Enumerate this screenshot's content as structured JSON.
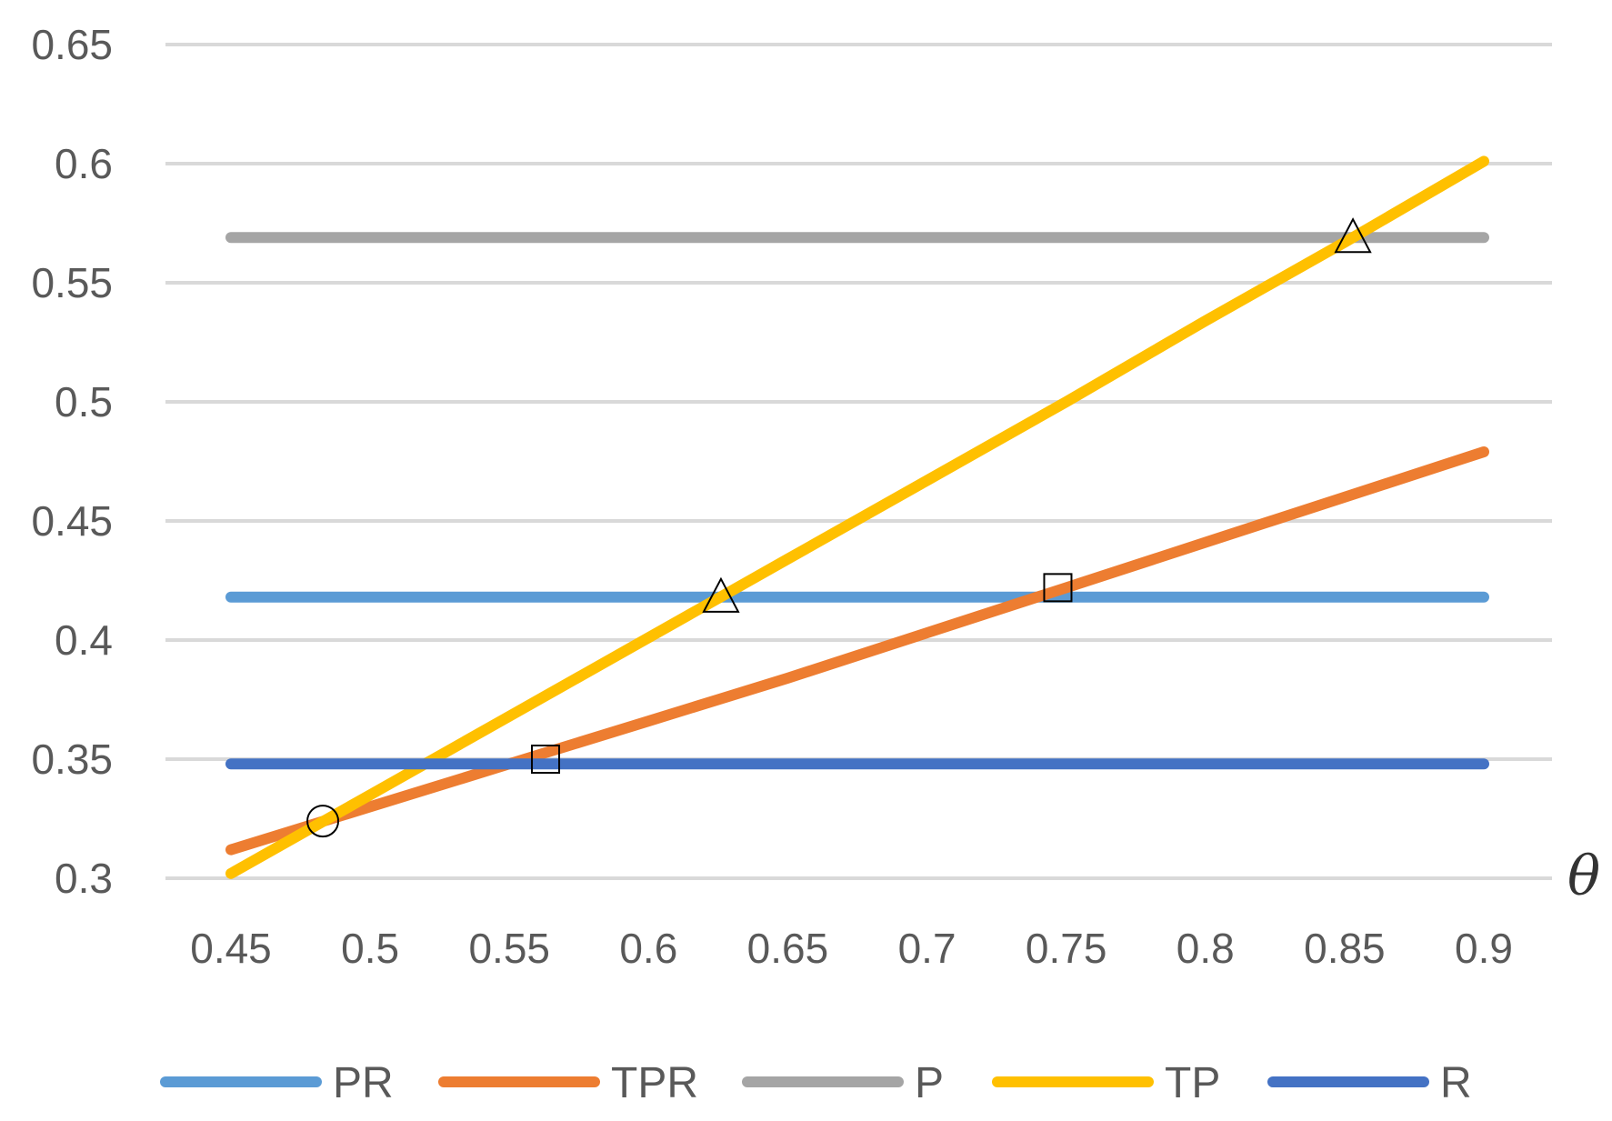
{
  "chart_data": {
    "type": "line",
    "title": "",
    "xlabel": "θ",
    "ylabel": "",
    "x": [
      0.45,
      0.5,
      0.55,
      0.6,
      0.65,
      0.7,
      0.75,
      0.8,
      0.85,
      0.9
    ],
    "xlim": [
      0.45,
      0.9
    ],
    "ylim": [
      0.3,
      0.65
    ],
    "x_ticks": [
      "0.45",
      "0.5",
      "0.55",
      "0.6",
      "0.65",
      "0.7",
      "0.75",
      "0.8",
      "0.85",
      "0.9"
    ],
    "y_ticks": [
      "0.3",
      "0.35",
      "0.4",
      "0.45",
      "0.5",
      "0.55",
      "0.6",
      "0.65"
    ],
    "grid": "horizontal",
    "legend_position": "bottom",
    "series": [
      {
        "name": "PR",
        "color": "#5B9BD5",
        "values": [
          0.418,
          0.418,
          0.418,
          0.418,
          0.418,
          0.418,
          0.418,
          0.418,
          0.418,
          0.418
        ]
      },
      {
        "name": "TPR",
        "color": "#ED7D31",
        "values": [
          0.312,
          0.33,
          0.348,
          0.366,
          0.384,
          0.403,
          0.422,
          0.441,
          0.46,
          0.479
        ]
      },
      {
        "name": "P",
        "color": "#A5A5A5",
        "values": [
          0.569,
          0.569,
          0.569,
          0.569,
          0.569,
          0.569,
          0.569,
          0.569,
          0.569,
          0.569
        ]
      },
      {
        "name": "TP",
        "color": "#FFC000",
        "values": [
          0.302,
          0.335,
          0.368,
          0.401,
          0.434,
          0.467,
          0.5,
          0.534,
          0.567,
          0.601
        ]
      },
      {
        "name": "R",
        "color": "#4472C4",
        "values": [
          0.348,
          0.348,
          0.348,
          0.348,
          0.348,
          0.348,
          0.348,
          0.348,
          0.348,
          0.348
        ]
      }
    ],
    "markers": [
      {
        "shape": "circle",
        "x": 0.483,
        "y": 0.324
      },
      {
        "shape": "square",
        "x": 0.563,
        "y": 0.35
      },
      {
        "shape": "triangle",
        "x": 0.626,
        "y": 0.418
      },
      {
        "shape": "square",
        "x": 0.747,
        "y": 0.422
      },
      {
        "shape": "triangle",
        "x": 0.853,
        "y": 0.569
      }
    ]
  }
}
